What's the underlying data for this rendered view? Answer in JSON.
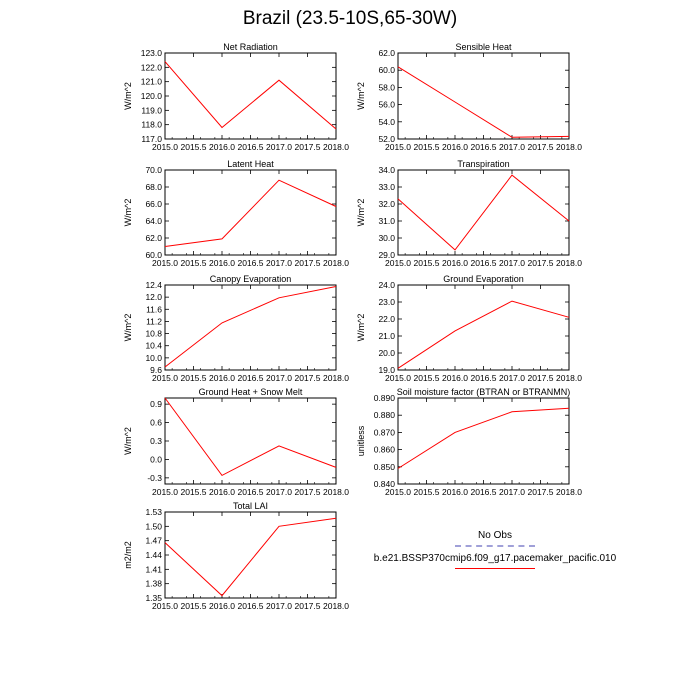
{
  "title": "Brazil (23.5-10S,65-30W)",
  "colors": {
    "series": "#ff0000",
    "obs": "#a0a0d8",
    "axis": "#000000"
  },
  "legend": {
    "obs_label": "No Obs",
    "model_label": "b.e21.BSSP370cmip6.f09_g17.pacemaker_pacific.010"
  },
  "chart_data": [
    {
      "type": "line",
      "title": "Net Radiation",
      "ylabel": "W/m^2",
      "x": [
        2015.0,
        2016.0,
        2017.0,
        2018.0
      ],
      "values": [
        122.4,
        117.8,
        121.1,
        117.7
      ],
      "xlim": [
        2015.0,
        2018.0
      ],
      "ylim": [
        117.0,
        123.0
      ],
      "xticks": [
        "2015.0",
        "2015.5",
        "2016.0",
        "2016.5",
        "2017.0",
        "2017.5",
        "2018.0"
      ],
      "yticks": [
        "117.0",
        "118.0",
        "119.0",
        "120.0",
        "121.0",
        "122.0",
        "123.0"
      ]
    },
    {
      "type": "line",
      "title": "Sensible Heat",
      "ylabel": "W/m^2",
      "x": [
        2015.0,
        2016.0,
        2017.0,
        2018.0
      ],
      "values": [
        60.4,
        56.3,
        52.2,
        52.3
      ],
      "xlim": [
        2015.0,
        2018.0
      ],
      "ylim": [
        52.0,
        62.0
      ],
      "xticks": [
        "2015.0",
        "2015.5",
        "2016.0",
        "2016.5",
        "2017.0",
        "2017.5",
        "2018.0"
      ],
      "yticks": [
        "52.0",
        "54.0",
        "56.0",
        "58.0",
        "60.0",
        "62.0"
      ]
    },
    {
      "type": "line",
      "title": "Latent Heat",
      "ylabel": "W/m^2",
      "x": [
        2015.0,
        2016.0,
        2017.0,
        2018.0
      ],
      "values": [
        61.0,
        61.9,
        68.8,
        65.7
      ],
      "xlim": [
        2015.0,
        2018.0
      ],
      "ylim": [
        60.0,
        70.0
      ],
      "xticks": [
        "2015.0",
        "2015.5",
        "2016.0",
        "2016.5",
        "2017.0",
        "2017.5",
        "2018.0"
      ],
      "yticks": [
        "60.0",
        "62.0",
        "64.0",
        "66.0",
        "68.0",
        "70.0"
      ]
    },
    {
      "type": "line",
      "title": "Transpiration",
      "ylabel": "W/m^2",
      "x": [
        2015.0,
        2016.0,
        2017.0,
        2018.0
      ],
      "values": [
        32.3,
        29.3,
        33.7,
        31.0
      ],
      "xlim": [
        2015.0,
        2018.0
      ],
      "ylim": [
        29.0,
        34.0
      ],
      "xticks": [
        "2015.0",
        "2015.5",
        "2016.0",
        "2016.5",
        "2017.0",
        "2017.5",
        "2018.0"
      ],
      "yticks": [
        "29.0",
        "30.0",
        "31.0",
        "32.0",
        "33.0",
        "34.0"
      ]
    },
    {
      "type": "line",
      "title": "Canopy Evaporation",
      "ylabel": "W/m^2",
      "x": [
        2015.0,
        2016.0,
        2017.0,
        2018.0
      ],
      "values": [
        9.7,
        11.15,
        11.98,
        12.35
      ],
      "xlim": [
        2015.0,
        2018.0
      ],
      "ylim": [
        9.6,
        12.4
      ],
      "xticks": [
        "2015.0",
        "2015.5",
        "2016.0",
        "2016.5",
        "2017.0",
        "2017.5",
        "2018.0"
      ],
      "yticks": [
        "9.6",
        "10.0",
        "10.4",
        "10.8",
        "11.2",
        "11.6",
        "12.0",
        "12.4"
      ]
    },
    {
      "type": "line",
      "title": "Ground Evaporation",
      "ylabel": "W/m^2",
      "x": [
        2015.0,
        2016.0,
        2017.0,
        2018.0
      ],
      "values": [
        19.1,
        21.3,
        23.05,
        22.1
      ],
      "xlim": [
        2015.0,
        2018.0
      ],
      "ylim": [
        19.0,
        24.0
      ],
      "xticks": [
        "2015.0",
        "2015.5",
        "2016.0",
        "2016.5",
        "2017.0",
        "2017.5",
        "2018.0"
      ],
      "yticks": [
        "19.0",
        "20.0",
        "21.0",
        "22.0",
        "23.0",
        "24.0"
      ]
    },
    {
      "type": "line",
      "title": "Ground Heat + Snow Melt",
      "ylabel": "W/m^2",
      "x": [
        2015.0,
        2016.0,
        2017.0,
        2018.0
      ],
      "values": [
        1.0,
        -0.26,
        0.22,
        -0.13
      ],
      "xlim": [
        2015.0,
        2018.0
      ],
      "ylim": [
        -0.4,
        1.0
      ],
      "xticks": [
        "2015.0",
        "2015.5",
        "2016.0",
        "2016.5",
        "2017.0",
        "2017.5",
        "2018.0"
      ],
      "yticks": [
        "-0.3",
        "0.0",
        "0.3",
        "0.6",
        "0.9"
      ],
      "ytick_values": [
        -0.3,
        0.0,
        0.3,
        0.6,
        0.9
      ]
    },
    {
      "type": "line",
      "title": "Soil moisture factor (BTRAN or BTRANMN)",
      "ylabel": "unitless",
      "x": [
        2015.0,
        2016.0,
        2017.0,
        2018.0
      ],
      "values": [
        0.849,
        0.87,
        0.882,
        0.884
      ],
      "xlim": [
        2015.0,
        2018.0
      ],
      "ylim": [
        0.84,
        0.89
      ],
      "xticks": [
        "2015.0",
        "2015.5",
        "2016.0",
        "2016.5",
        "2017.0",
        "2017.5",
        "2018.0"
      ],
      "yticks": [
        "0.840",
        "0.850",
        "0.860",
        "0.870",
        "0.880",
        "0.890"
      ]
    },
    {
      "type": "line",
      "title": "Total LAI",
      "ylabel": "m2/m2",
      "x": [
        2015.0,
        2016.0,
        2017.0,
        2018.0
      ],
      "values": [
        1.466,
        1.355,
        1.5,
        1.517
      ],
      "xlim": [
        2015.0,
        2018.0
      ],
      "ylim": [
        1.35,
        1.53
      ],
      "xticks": [
        "2015.0",
        "2015.5",
        "2016.0",
        "2016.5",
        "2017.0",
        "2017.5",
        "2018.0"
      ],
      "yticks": [
        "1.35",
        "1.38",
        "1.41",
        "1.44",
        "1.47",
        "1.50",
        "1.53"
      ]
    }
  ]
}
